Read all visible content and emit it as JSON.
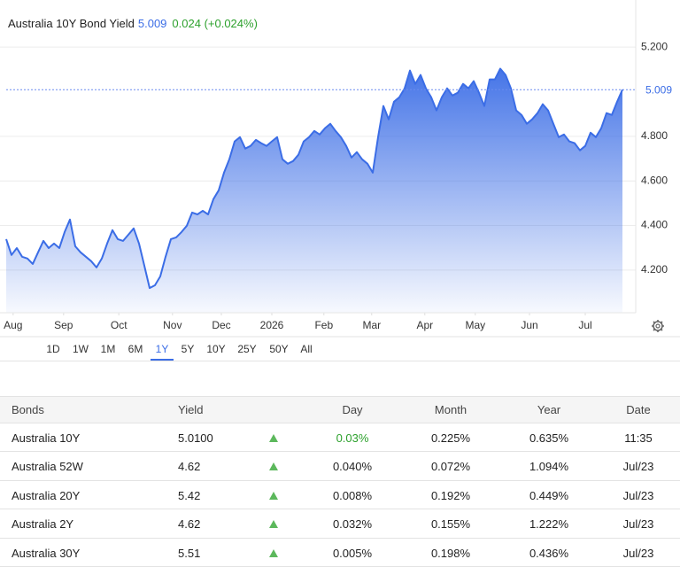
{
  "chart_data": {
    "type": "area",
    "title": "Australia 10Y Bond Yield",
    "price": 5.009,
    "change": "0.024 (+0.024%)",
    "color": "#3b6de6",
    "values": [
      4.339,
      4.268,
      4.299,
      4.26,
      4.252,
      4.228,
      4.28,
      4.331,
      4.299,
      4.319,
      4.299,
      4.371,
      4.427,
      4.307,
      4.28,
      4.26,
      4.24,
      4.212,
      4.252,
      4.319,
      4.379,
      4.339,
      4.331,
      4.359,
      4.387,
      4.319,
      4.22,
      4.12,
      4.132,
      4.172,
      4.26,
      4.339,
      4.347,
      4.371,
      4.399,
      4.458,
      4.45,
      4.466,
      4.45,
      4.518,
      4.558,
      4.637,
      4.697,
      4.777,
      4.796,
      4.745,
      4.757,
      4.784,
      4.769,
      4.757,
      4.777,
      4.796,
      4.697,
      4.677,
      4.689,
      4.717,
      4.777,
      4.796,
      4.824,
      4.808,
      4.836,
      4.856,
      4.824,
      4.796,
      4.757,
      4.705,
      4.729,
      4.697,
      4.677,
      4.637,
      4.796,
      4.936,
      4.876,
      4.955,
      4.975,
      5.015,
      5.095,
      5.035,
      5.075,
      5.015,
      4.975,
      4.916,
      4.975,
      5.015,
      4.983,
      4.995,
      5.035,
      5.015,
      5.047,
      4.995,
      4.936,
      5.055,
      5.055,
      5.103,
      5.075,
      5.015,
      4.916,
      4.896,
      4.856,
      4.876,
      4.904,
      4.944,
      4.916,
      4.856,
      4.796,
      4.808,
      4.777,
      4.769,
      4.737,
      4.757,
      4.816,
      4.796,
      4.836,
      4.904,
      4.896,
      4.955,
      5.009
    ],
    "xlim": [
      0,
      118.5
    ],
    "xticks": [
      {
        "value": 1.3,
        "label": "Aug"
      },
      {
        "value": 10.8,
        "label": "Sep"
      },
      {
        "value": 21.2,
        "label": "Oct"
      },
      {
        "value": 31.3,
        "label": "Nov"
      },
      {
        "value": 40.5,
        "label": "Dec"
      },
      {
        "value": 50,
        "label": "2026"
      },
      {
        "value": 59.8,
        "label": "Feb"
      },
      {
        "value": 68.8,
        "label": "Mar"
      },
      {
        "value": 78.8,
        "label": "Apr"
      },
      {
        "value": 88.3,
        "label": "May"
      },
      {
        "value": 98.5,
        "label": "Jun"
      },
      {
        "value": 109,
        "label": "Jul"
      }
    ],
    "ylim": [
      4.009,
      5.411
    ],
    "yticks": [
      {
        "value": 4.2,
        "label": "4.200"
      },
      {
        "value": 4.4,
        "label": "4.400"
      },
      {
        "value": 4.6,
        "label": "4.600"
      },
      {
        "value": 4.8,
        "label": "4.800"
      },
      {
        "value": 5.2,
        "label": "5.200"
      }
    ],
    "grid": true
  },
  "range_buttons": {
    "options": [
      "1D",
      "1W",
      "1M",
      "6M",
      "1Y",
      "5Y",
      "10Y",
      "25Y",
      "50Y",
      "All"
    ],
    "selected": "1Y"
  },
  "table": {
    "header": [
      "Bonds",
      "Yield",
      "Day",
      "Month",
      "Year",
      "Date"
    ],
    "rows": [
      [
        "Australia 10Y",
        "5.0100",
        "0.03%",
        "0.225%",
        "0.635%",
        "11:35"
      ],
      [
        "Australia 52W",
        "4.62",
        "0.040%",
        "0.072%",
        "1.094%",
        "Jul/23"
      ],
      [
        "Australia 20Y",
        "5.42",
        "0.008%",
        "0.192%",
        "0.449%",
        "Jul/23"
      ],
      [
        "Australia 2Y",
        "4.62",
        "0.032%",
        "0.155%",
        "1.222%",
        "Jul/23"
      ],
      [
        "Australia 30Y",
        "5.51",
        "0.005%",
        "0.198%",
        "0.436%",
        "Jul/23"
      ]
    ]
  }
}
